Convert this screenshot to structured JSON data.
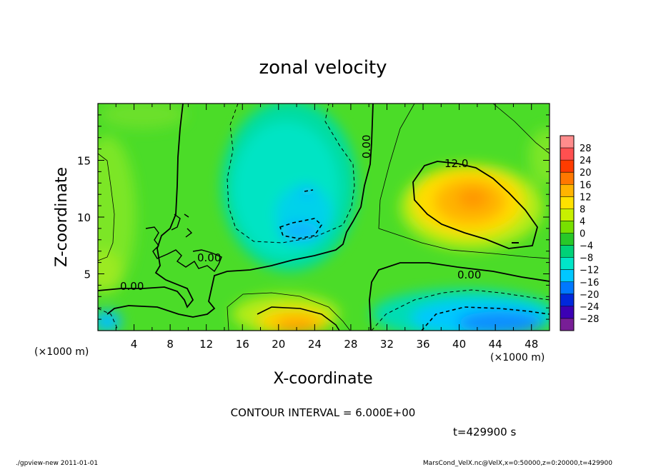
{
  "chart_data": {
    "type": "heatmap",
    "title": "zonal velocity",
    "xlabel": "X-coordinate",
    "ylabel": "Z-coordinate",
    "x_unit": "(×1000 m)",
    "y_unit": "(×1000 m)",
    "x_ticks": [
      4,
      8,
      12,
      16,
      20,
      24,
      28,
      32,
      36,
      40,
      44,
      48
    ],
    "y_ticks": [
      5,
      10,
      15
    ],
    "xlim": [
      0,
      50
    ],
    "ylim": [
      0,
      20
    ],
    "colorbar": {
      "labels": [
        "28",
        "24",
        "20",
        "16",
        "12",
        "8",
        "4",
        "0",
        "−4",
        "−8",
        "−12",
        "−16",
        "−20",
        "−24",
        "−28"
      ],
      "colors": [
        "#ff8c8c",
        "#ff5050",
        "#ff3c00",
        "#ff7800",
        "#ffb400",
        "#ffe100",
        "#c8f000",
        "#78e000",
        "#28c828",
        "#00d278",
        "#00e6c8",
        "#00c8ff",
        "#0078ff",
        "#0028dc",
        "#3c00b4",
        "#781e96"
      ]
    },
    "contour_labels": [
      "12.0",
      "0.00",
      "0.00",
      "0.00",
      "0.00"
    ],
    "regions": [
      {
        "name": "positive max",
        "x": 41,
        "y": 11.5,
        "value": 16
      },
      {
        "name": "negative core",
        "x": 23,
        "y": 9,
        "value": -12
      },
      {
        "name": "surface positive",
        "x": 23,
        "y": 1.2,
        "value": 14
      },
      {
        "name": "surface negative",
        "x": 44,
        "y": 1,
        "value": -16
      }
    ],
    "contour_interval_text": "CONTOUR INTERVAL = 6.000E+00",
    "time_text": "t=429900 s"
  },
  "footer": {
    "left": "./gpview-new  2011-01-01",
    "right": "MarsCond_VelX.nc@VelX,x=0:50000,z=0:20000,t=429900"
  }
}
